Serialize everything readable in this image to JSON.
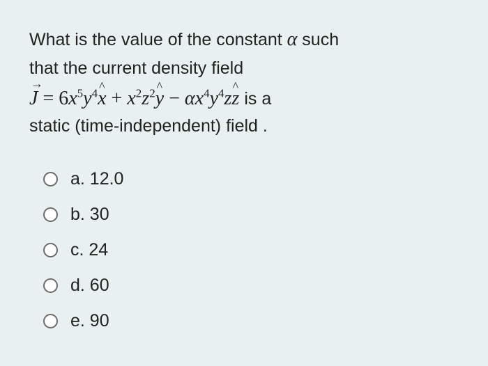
{
  "question": {
    "line1_part1": "What is the value of the constant ",
    "line1_part2": " such",
    "line2": "that the current density field",
    "line3_trailing": " is a",
    "line4": "static (time-independent) field ."
  },
  "equation": {
    "J": "J",
    "eq": " = ",
    "coef1": "6",
    "x": "x",
    "y": "y",
    "z": "z",
    "p5": "5",
    "p4": "4",
    "p2": "2",
    "plus": " + ",
    "minus": " − ",
    "alpha_sym": "α",
    "xhat": "x",
    "yhat": "y",
    "zhat": "z"
  },
  "options": [
    {
      "key": "a",
      "label": "a. 12.0"
    },
    {
      "key": "b",
      "label": "b. 30"
    },
    {
      "key": "c",
      "label": "c. 24"
    },
    {
      "key": "d",
      "label": "d. 60"
    },
    {
      "key": "e",
      "label": "e. 90"
    }
  ],
  "colors": {
    "background": "#e8f0f0",
    "text": "#222222",
    "radio_border": "#6a6a6a",
    "radio_fill": "#ffffff"
  },
  "typography": {
    "body_fontsize": 25,
    "math_fontsize": 28,
    "option_fontsize": 25
  }
}
